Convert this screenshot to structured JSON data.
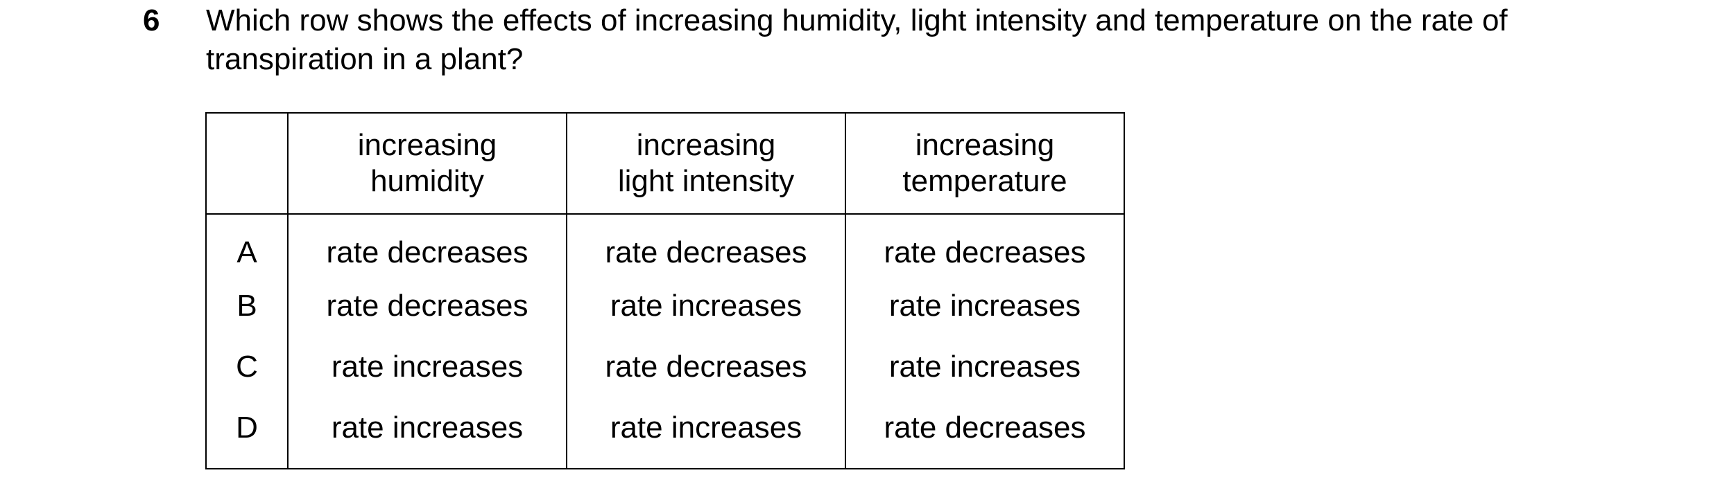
{
  "question": {
    "number": "6",
    "line1": "Which row shows the effects of increasing humidity, light intensity and temperature on the rate of",
    "line2": "transpiration in a plant?"
  },
  "table": {
    "headers": [
      {
        "line1": "increasing",
        "line2": "humidity"
      },
      {
        "line1": "increasing",
        "line2": "light intensity"
      },
      {
        "line1": "increasing",
        "line2": "temperature"
      }
    ],
    "rows": [
      {
        "letter": "A",
        "cells": [
          "rate decreases",
          "rate decreases",
          "rate decreases"
        ]
      },
      {
        "letter": "B",
        "cells": [
          "rate decreases",
          "rate increases",
          "rate increases"
        ]
      },
      {
        "letter": "C",
        "cells": [
          "rate increases",
          "rate decreases",
          "rate increases"
        ]
      },
      {
        "letter": "D",
        "cells": [
          "rate increases",
          "rate increases",
          "rate decreases"
        ]
      }
    ]
  }
}
